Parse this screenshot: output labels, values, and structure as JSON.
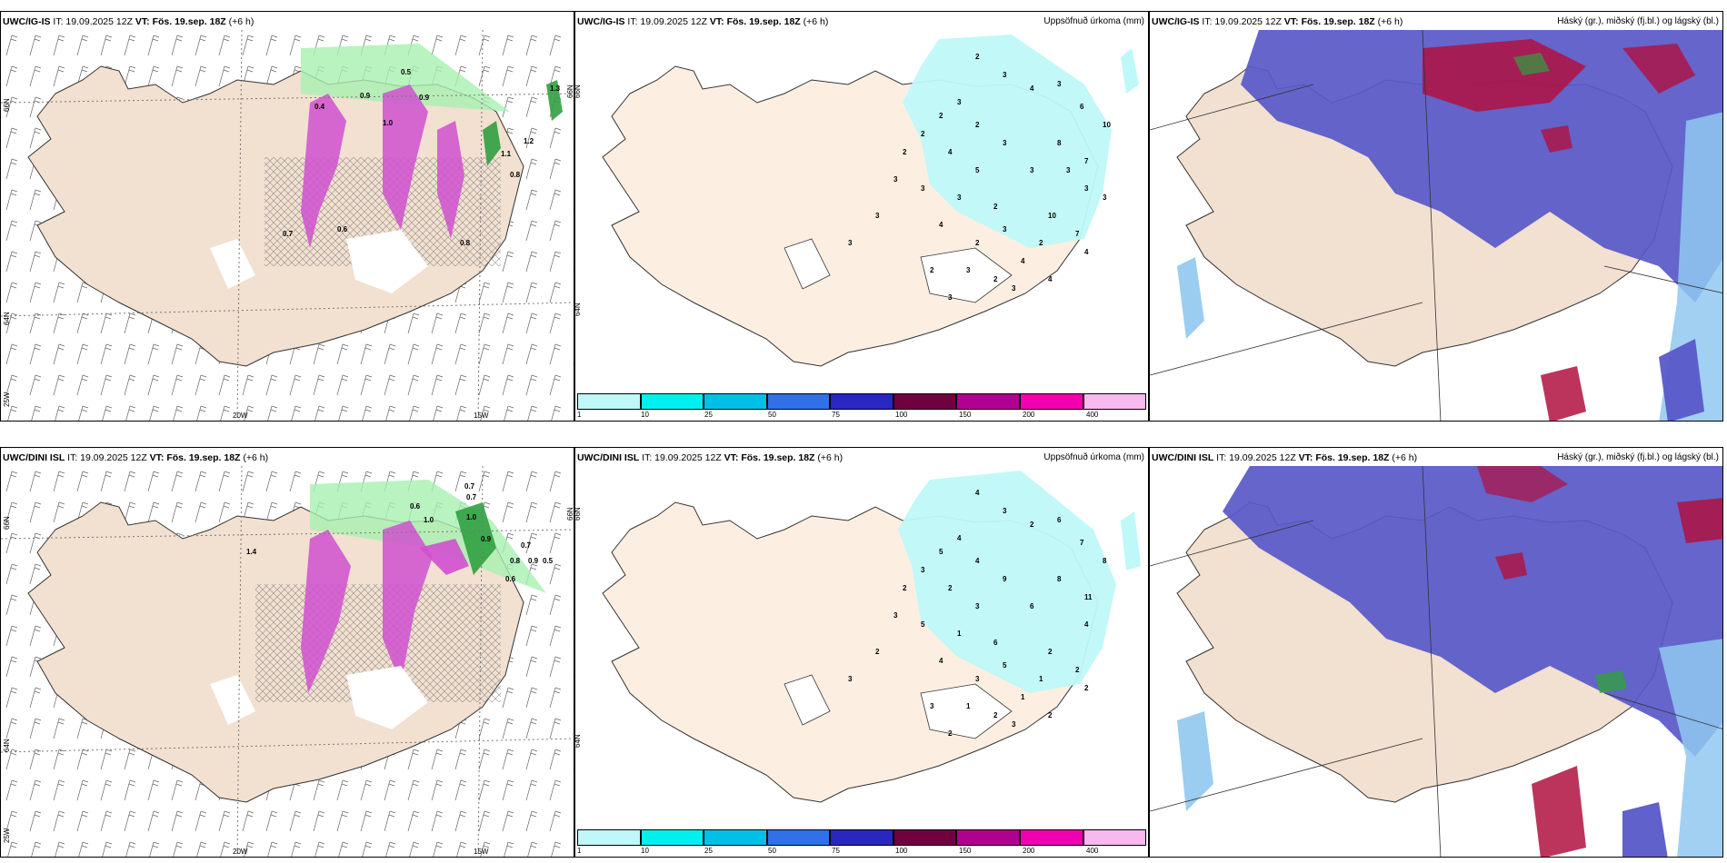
{
  "rows": [
    {
      "model": "UWC/IG-IS",
      "it": "IT: 19.09.2025 12Z",
      "vt_label": "VT:",
      "vt": "Fös. 19.sep. 18Z",
      "lead": "(+6 h)",
      "precip_numbers": [
        "2",
        "3",
        "4",
        "3",
        "6",
        "10",
        "3",
        "2",
        "2",
        "2",
        "8",
        "7",
        "3",
        "4",
        "5",
        "3",
        "3",
        "3",
        "3",
        "2",
        "10",
        "7",
        "4",
        "2",
        "3",
        "2",
        "4",
        "3",
        "2",
        "2",
        "4",
        "4",
        "3",
        "2",
        "3",
        "3",
        "3",
        "3",
        "3",
        "3"
      ],
      "wind_values": [
        "0.5",
        "0.8",
        "0.9",
        "1.2",
        "0.7",
        "1.0",
        "1.3",
        "0.6",
        "0.4",
        "0.8",
        "0.9",
        "1.1"
      ]
    },
    {
      "model": "UWC/DINI ISL",
      "it": "IT: 19.09.2025 12Z",
      "vt_label": "VT:",
      "vt": "Fös. 19.sep. 18Z",
      "lead": "(+6 h)",
      "precip_numbers": [
        "4",
        "3",
        "2",
        "6",
        "7",
        "8",
        "4",
        "5",
        "4",
        "3",
        "8",
        "11",
        "9",
        "2",
        "3",
        "6",
        "4",
        "5",
        "1",
        "6",
        "2",
        "2",
        "4",
        "3",
        "5",
        "1",
        "1",
        "1",
        "2",
        "3",
        "2",
        "2",
        "3",
        "2",
        "2",
        "3",
        "3",
        "2"
      ],
      "wind_values": [
        "0.7",
        "0.7",
        "1.0",
        "0.9",
        "0.6",
        "0.8",
        "0.9",
        "0.5",
        "1.4",
        "0.7",
        "1.0",
        "0.6"
      ]
    }
  ],
  "precip_title": "Uppsöfnuð úrkoma (mm)",
  "cloud_title": "Háský (gr.), miðský (fj.bl.) og lágský (bl.)",
  "colorbar": {
    "ticks": [
      "1",
      "10",
      "25",
      "50",
      "75",
      "100",
      "150",
      "200",
      "400"
    ],
    "colors": [
      "#bff8f8",
      "#00f0f0",
      "#00c0e8",
      "#3070e8",
      "#2828c0",
      "#700040",
      "#b00090",
      "#f000b0",
      "#f8b8f0"
    ]
  },
  "axes": {
    "lon_20": "20W",
    "lon_15": "15W",
    "lat_66": "66N",
    "lat_64": "64N",
    "lon_25": "25W"
  },
  "colors": {
    "land": "#f2e0d0",
    "land_precip": "#fcefe2",
    "cloud_high": "#5858c8",
    "cloud_low": "#90c8f0",
    "red": "#b01040",
    "green_precip": "#30a040",
    "magenta": "#d050d0"
  }
}
